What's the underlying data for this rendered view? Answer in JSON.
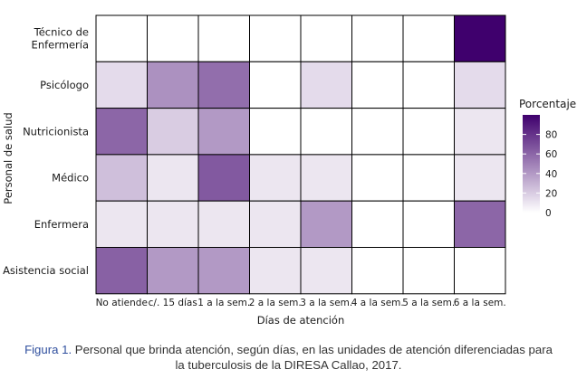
{
  "chart_data": {
    "type": "heatmap",
    "xlabel": "Días de atención",
    "ylabel": "Personal de salud",
    "x_categories": [
      "No atiende",
      "c/. 15 días",
      "1 a la sem.",
      "2 a la sem.",
      "3 a la sem.",
      "4 a la sem.",
      "5 a la sem.",
      "6 a la sem."
    ],
    "y_categories": [
      "Técnico de Enfermería",
      "Psicólogo",
      "Nutricionista",
      "Médico",
      "Enfermera",
      "Asistencia social"
    ],
    "y_tick_lines": [
      [
        "Técnico de",
        "Enfermería"
      ],
      [
        "Psicólogo"
      ],
      [
        "Nutricionista"
      ],
      [
        "Médico"
      ],
      [
        "Enfermera"
      ],
      [
        "Asistencia social"
      ]
    ],
    "values": [
      [
        0,
        0,
        0,
        0,
        0,
        0,
        0,
        100
      ],
      [
        14,
        43,
        57,
        0,
        14,
        0,
        0,
        14
      ],
      [
        60,
        20,
        40,
        0,
        0,
        0,
        0,
        10
      ],
      [
        25,
        10,
        65,
        10,
        10,
        0,
        0,
        10
      ],
      [
        10,
        10,
        10,
        10,
        40,
        0,
        0,
        60
      ],
      [
        62,
        40,
        40,
        10,
        10,
        0,
        0,
        0
      ]
    ],
    "legend": {
      "title": "Porcentaje",
      "ticks": [
        0,
        20,
        40,
        60,
        80
      ],
      "range": [
        0,
        100
      ],
      "colors": {
        "low": "#ffffff",
        "high": "#3f006d"
      },
      "placement": "right"
    }
  },
  "caption": {
    "label": "Figura 1.",
    "line1": "Personal que brinda atención, según días, en las unidades de atención diferenciadas para",
    "line2": "la tuberculosis de la DIRESA Callao, 2017."
  },
  "colors": {
    "label": "#2f4f9e",
    "text": "#333333",
    "grid_line": "#000000"
  }
}
